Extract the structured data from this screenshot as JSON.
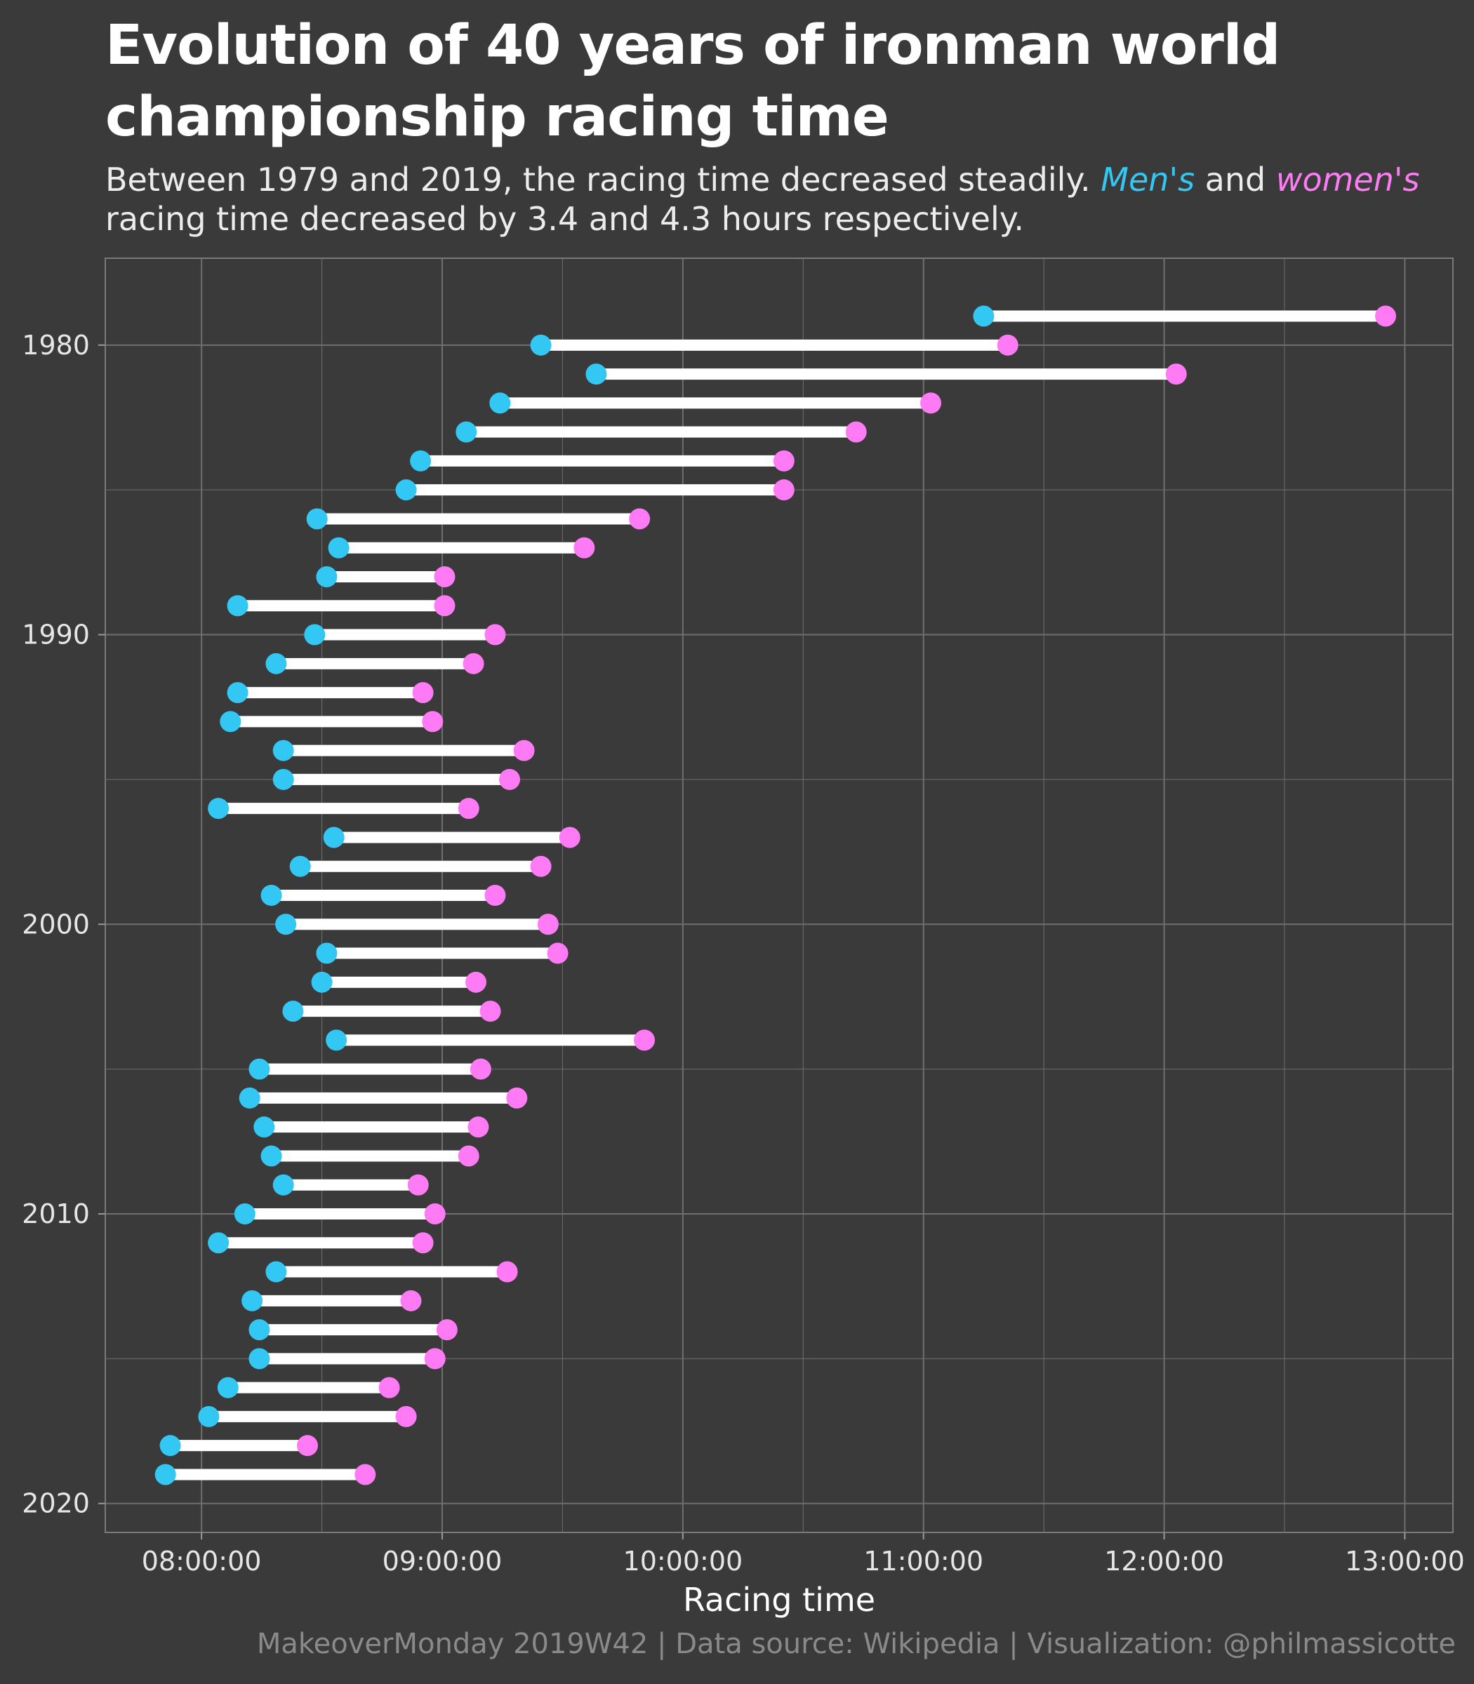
{
  "title": "Evolution of 40 years of ironman world championship racing time",
  "subtitle": {
    "part1": "Between 1979 and 2019, the racing time decreased steadily. ",
    "men": "Men's",
    "part2": " and ",
    "women": "women's",
    "part3": " racing time decreased by 3.4 and 4.3 hours respectively."
  },
  "caption": "MakeoverMonday 2019W42 | Data source: Wikipedia | Visualization: @philmassicotte",
  "colors": {
    "background": "#3a3a3a",
    "grid": "#6f6f6f",
    "men": "#33c8f4",
    "women": "#ff7af5",
    "connector": "#ffffff"
  },
  "chart_data": {
    "type": "dumbbell",
    "orientation": "horizontal",
    "xlabel": "Racing time",
    "ylabel": "",
    "x_unit": "hours",
    "xlim": [
      7.6,
      13.2
    ],
    "x_ticks": [
      8,
      9,
      10,
      11,
      12,
      13
    ],
    "x_tick_labels": [
      "08:00:00",
      "09:00:00",
      "10:00:00",
      "11:00:00",
      "12:00:00",
      "13:00:00"
    ],
    "ylim": [
      1977,
      2021
    ],
    "y_ticks": [
      1980,
      1990,
      2000,
      2010,
      2020
    ],
    "y_tick_labels": [
      "1980",
      "1990",
      "2000",
      "2010",
      "2020"
    ],
    "grid": true,
    "legend": "inline in subtitle",
    "series": [
      {
        "name": "Men's",
        "key": "men"
      },
      {
        "name": "women's",
        "key": "women"
      }
    ],
    "points": [
      {
        "year": 1979,
        "men": 11.25,
        "women": 12.92
      },
      {
        "year": 1980,
        "men": 9.41,
        "women": 11.35
      },
      {
        "year": 1981,
        "men": 9.64,
        "women": 12.05
      },
      {
        "year": 1982,
        "men": 9.24,
        "women": 11.03
      },
      {
        "year": 1983,
        "men": 9.1,
        "women": 10.72
      },
      {
        "year": 1984,
        "men": 8.91,
        "women": 10.42
      },
      {
        "year": 1985,
        "men": 8.85,
        "women": 10.42
      },
      {
        "year": 1986,
        "men": 8.48,
        "women": 9.82
      },
      {
        "year": 1987,
        "men": 8.57,
        "women": 9.59
      },
      {
        "year": 1988,
        "men": 8.52,
        "women": 9.01
      },
      {
        "year": 1989,
        "men": 8.15,
        "women": 9.01
      },
      {
        "year": 1990,
        "men": 8.47,
        "women": 9.22
      },
      {
        "year": 1991,
        "men": 8.31,
        "women": 9.13
      },
      {
        "year": 1992,
        "men": 8.15,
        "women": 8.92
      },
      {
        "year": 1993,
        "men": 8.12,
        "women": 8.96
      },
      {
        "year": 1994,
        "men": 8.34,
        "women": 9.34
      },
      {
        "year": 1995,
        "men": 8.34,
        "women": 9.28
      },
      {
        "year": 1996,
        "men": 8.07,
        "women": 9.11
      },
      {
        "year": 1997,
        "men": 8.55,
        "women": 9.53
      },
      {
        "year": 1998,
        "men": 8.41,
        "women": 9.41
      },
      {
        "year": 1999,
        "men": 8.29,
        "women": 9.22
      },
      {
        "year": 2000,
        "men": 8.35,
        "women": 9.44
      },
      {
        "year": 2001,
        "men": 8.52,
        "women": 9.48
      },
      {
        "year": 2002,
        "men": 8.5,
        "women": 9.14
      },
      {
        "year": 2003,
        "men": 8.38,
        "women": 9.2
      },
      {
        "year": 2004,
        "men": 8.56,
        "women": 9.84
      },
      {
        "year": 2005,
        "men": 8.24,
        "women": 9.16
      },
      {
        "year": 2006,
        "men": 8.2,
        "women": 9.31
      },
      {
        "year": 2007,
        "men": 8.26,
        "women": 9.15
      },
      {
        "year": 2008,
        "men": 8.29,
        "women": 9.11
      },
      {
        "year": 2009,
        "men": 8.34,
        "women": 8.9
      },
      {
        "year": 2010,
        "men": 8.18,
        "women": 8.97
      },
      {
        "year": 2011,
        "men": 8.07,
        "women": 8.92
      },
      {
        "year": 2012,
        "men": 8.31,
        "women": 9.27
      },
      {
        "year": 2013,
        "men": 8.21,
        "women": 8.87
      },
      {
        "year": 2014,
        "men": 8.24,
        "women": 9.02
      },
      {
        "year": 2015,
        "men": 8.24,
        "women": 8.97
      },
      {
        "year": 2016,
        "men": 8.11,
        "women": 8.78
      },
      {
        "year": 2017,
        "men": 8.03,
        "women": 8.85
      },
      {
        "year": 2018,
        "men": 7.87,
        "women": 8.44
      },
      {
        "year": 2019,
        "men": 7.85,
        "women": 8.68
      }
    ]
  }
}
